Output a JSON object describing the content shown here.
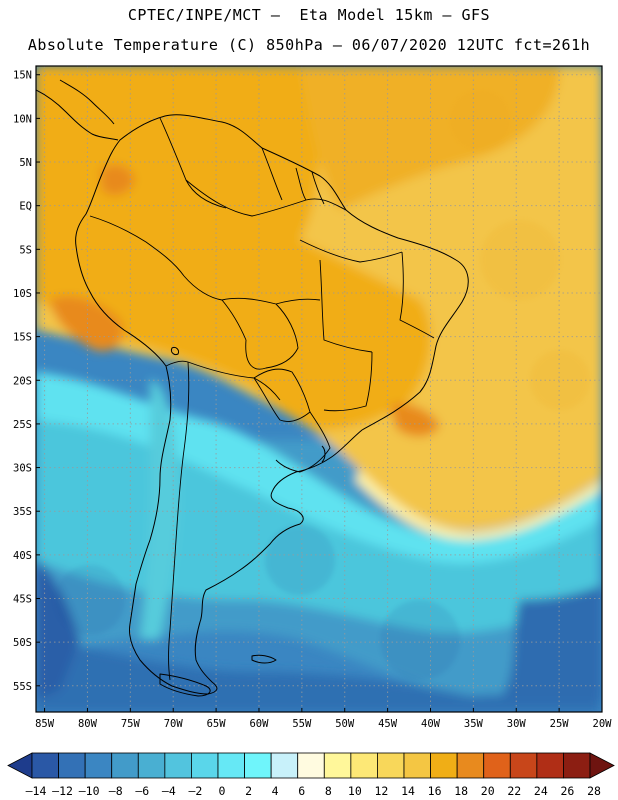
{
  "header": {
    "line1": "CPTEC/INPE/MCT –  Eta Model 15km – GFS",
    "line2": "Absolute Temperature (C) 850hPa – 06/07/2020 12UTC fct=261h"
  },
  "map": {
    "lat_labels": [
      "15N",
      "10N",
      "5N",
      "EQ",
      "5S",
      "10S",
      "15S",
      "20S",
      "25S",
      "30S",
      "35S",
      "40S",
      "45S",
      "50S",
      "55S"
    ],
    "lon_labels": [
      "85W",
      "80W",
      "75W",
      "70W",
      "65W",
      "60W",
      "55W",
      "50W",
      "45W",
      "40W",
      "35W",
      "30W",
      "25W",
      "20W"
    ],
    "lat_range": [
      16,
      -58
    ],
    "lon_range": [
      -86,
      -20
    ],
    "grid_step_deg": 5
  },
  "colorbar": {
    "labels": [
      "-14",
      "-12",
      "-10",
      "-8",
      "-6",
      "-4",
      "-2",
      "0",
      "2",
      "4",
      "6",
      "8",
      "10",
      "12",
      "14",
      "16",
      "18",
      "20",
      "22",
      "24",
      "26",
      "28"
    ],
    "colors": [
      "#1e3c8c",
      "#2a58a6",
      "#3371b6",
      "#3b86c2",
      "#429bc9",
      "#49afd2",
      "#52c4de",
      "#5ad6ea",
      "#66e8f5",
      "#6ff5fb",
      "#c8f1fa",
      "#fffbe0",
      "#fff79a",
      "#fde876",
      "#f8d75a",
      "#f4c643",
      "#f0ae16",
      "#e88a1e",
      "#e0621a",
      "#c8461a",
      "#b02e16",
      "#8c1e12",
      "#6e1410"
    ]
  },
  "colors": {
    "warm_main": "#f2af1a",
    "warm_ocean": "#f3c54a",
    "cold_main": "#4cc6dc",
    "cold_deep": "#2f72b6",
    "coast": "#000000"
  }
}
